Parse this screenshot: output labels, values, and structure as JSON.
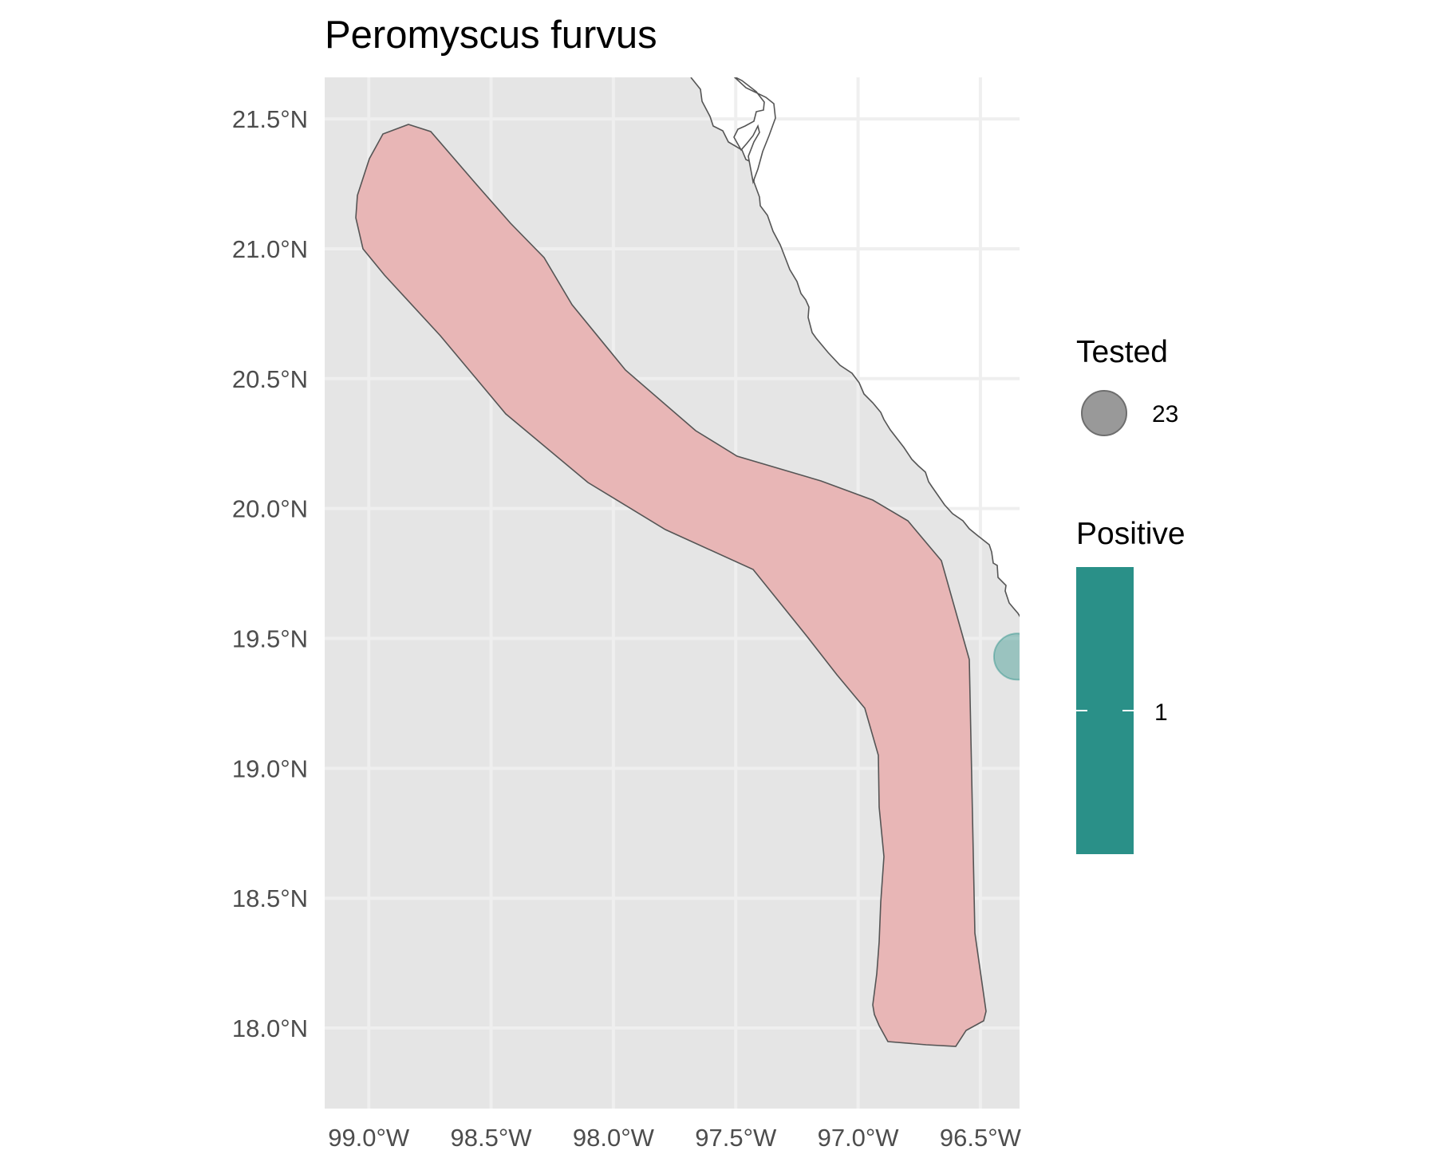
{
  "title": "Peromyscus furvus",
  "map": {
    "extent": {
      "lon": [
        -99.18,
        -96.34
      ],
      "lat": [
        17.69,
        21.66
      ]
    },
    "panel_background": "#e5e5e5",
    "grid_color": "#efefef",
    "range_fill": "#e8b6b6",
    "range_stroke": "#555555",
    "coast_stroke": "#555555",
    "x_ticks": [
      "99.0°W",
      "98.5°W",
      "98.0°W",
      "97.5°W",
      "97.0°W",
      "96.5°W"
    ],
    "y_ticks": [
      "21.5°N",
      "21.0°N",
      "20.5°N",
      "20.0°N",
      "19.5°N",
      "19.0°N",
      "18.5°N",
      "18.0°N"
    ],
    "samples": [
      {
        "lon": -96.35,
        "lat": 19.43,
        "tested": 23,
        "positive": 1,
        "color": "#2a9088"
      }
    ]
  },
  "legend": {
    "tested": {
      "title": "Tested",
      "label": "23",
      "color": "#999999"
    },
    "positive": {
      "title": "Positive",
      "label": "1",
      "color": "#2a9088"
    }
  }
}
